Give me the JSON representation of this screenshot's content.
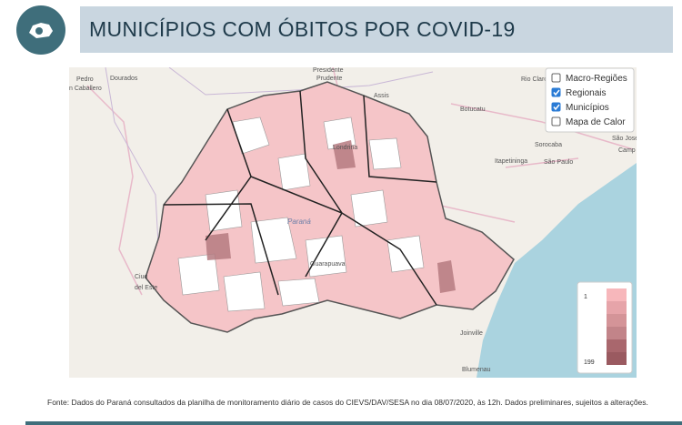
{
  "header": {
    "title": "MUNICÍPIOS COM ÓBITOS POR COVID-19"
  },
  "map": {
    "layers": [
      {
        "label": "Macro-Regiões",
        "checked": false
      },
      {
        "label": "Regionais",
        "checked": true
      },
      {
        "label": "Municípios",
        "checked": true
      },
      {
        "label": "Mapa de Calor",
        "checked": false
      }
    ],
    "legend": {
      "min": 1,
      "max": 199
    },
    "places": [
      "Pedro",
      "n Caballero",
      "Dourados",
      "Presidente",
      "Prudente",
      "Assis",
      "Rio Claro",
      "Botucatu",
      "Sorocaba",
      "Itapetininga",
      "São Paulo",
      "São José",
      "Camp",
      "Londrina",
      "Paraná",
      "Guarapuava",
      "Ciud",
      "del Este",
      "Joinville",
      "Blumenau"
    ]
  },
  "footer": {
    "source": "Fonte: Dados do Paraná consultados da planilha de monitoramento diário de casos do CIEVS/DAV/SESA no dia 08/07/2020, às 12h. Dados preliminares, sujeitos a alterações."
  }
}
